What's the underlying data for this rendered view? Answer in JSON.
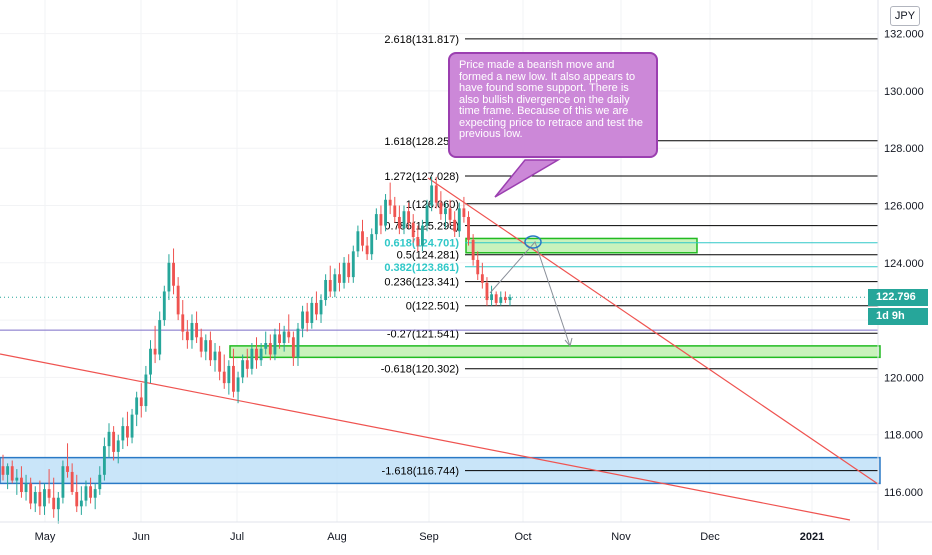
{
  "chart_data": {
    "type": "candlestick",
    "symbol_currency": "JPY",
    "x_axis_labels": [
      "May",
      "Jun",
      "Jul",
      "Aug",
      "Sep",
      "Oct",
      "Nov",
      "Dec",
      "2021"
    ],
    "y_axis_labels": [
      "116.000",
      "118.000",
      "120.000",
      "122.000",
      "124.000",
      "126.000",
      "128.000",
      "130.000",
      "132.000"
    ],
    "ylim": [
      115,
      133
    ],
    "current_price": "122.796",
    "countdown": "1d 9h",
    "candles": [
      {
        "o": 116.9,
        "h": 117.3,
        "l": 116.4,
        "c": 116.6
      },
      {
        "o": 116.6,
        "h": 117.0,
        "l": 116.1,
        "c": 116.9
      },
      {
        "o": 116.9,
        "h": 117.1,
        "l": 116.3,
        "c": 116.4
      },
      {
        "o": 116.4,
        "h": 116.8,
        "l": 115.9,
        "c": 116.5
      },
      {
        "o": 116.5,
        "h": 116.9,
        "l": 115.8,
        "c": 116.0
      },
      {
        "o": 116.0,
        "h": 116.6,
        "l": 115.7,
        "c": 116.3
      },
      {
        "o": 116.3,
        "h": 116.5,
        "l": 115.4,
        "c": 115.6
      },
      {
        "o": 115.6,
        "h": 116.2,
        "l": 115.3,
        "c": 116.0
      },
      {
        "o": 116.0,
        "h": 116.4,
        "l": 115.2,
        "c": 115.5
      },
      {
        "o": 115.5,
        "h": 116.3,
        "l": 115.2,
        "c": 116.1
      },
      {
        "o": 116.1,
        "h": 116.8,
        "l": 115.6,
        "c": 115.8
      },
      {
        "o": 115.8,
        "h": 116.5,
        "l": 115.1,
        "c": 115.4
      },
      {
        "o": 115.4,
        "h": 116.0,
        "l": 114.9,
        "c": 115.8
      },
      {
        "o": 115.8,
        "h": 117.1,
        "l": 115.6,
        "c": 116.9
      },
      {
        "o": 116.9,
        "h": 117.7,
        "l": 116.5,
        "c": 116.7
      },
      {
        "o": 116.7,
        "h": 117.0,
        "l": 115.9,
        "c": 116.0
      },
      {
        "o": 116.0,
        "h": 116.6,
        "l": 115.3,
        "c": 115.5
      },
      {
        "o": 115.5,
        "h": 116.2,
        "l": 115.2,
        "c": 115.7
      },
      {
        "o": 115.7,
        "h": 116.4,
        "l": 115.5,
        "c": 116.2
      },
      {
        "o": 116.2,
        "h": 116.5,
        "l": 115.6,
        "c": 115.8
      },
      {
        "o": 115.8,
        "h": 116.3,
        "l": 115.4,
        "c": 116.1
      },
      {
        "o": 116.1,
        "h": 116.9,
        "l": 115.9,
        "c": 116.6
      },
      {
        "o": 116.6,
        "h": 117.9,
        "l": 116.4,
        "c": 117.6
      },
      {
        "o": 117.6,
        "h": 118.4,
        "l": 117.2,
        "c": 118.1
      },
      {
        "o": 118.1,
        "h": 118.3,
        "l": 117.1,
        "c": 117.4
      },
      {
        "o": 117.4,
        "h": 118.0,
        "l": 117.0,
        "c": 117.8
      },
      {
        "o": 117.8,
        "h": 118.6,
        "l": 117.5,
        "c": 118.3
      },
      {
        "o": 118.3,
        "h": 118.8,
        "l": 117.6,
        "c": 117.9
      },
      {
        "o": 117.9,
        "h": 118.9,
        "l": 117.7,
        "c": 118.7
      },
      {
        "o": 118.7,
        "h": 119.5,
        "l": 118.3,
        "c": 119.3
      },
      {
        "o": 119.3,
        "h": 119.8,
        "l": 118.6,
        "c": 119.0
      },
      {
        "o": 119.0,
        "h": 120.4,
        "l": 118.8,
        "c": 120.1
      },
      {
        "o": 120.1,
        "h": 121.3,
        "l": 119.8,
        "c": 121.0
      },
      {
        "o": 121.0,
        "h": 121.8,
        "l": 120.5,
        "c": 120.8
      },
      {
        "o": 120.8,
        "h": 122.3,
        "l": 120.6,
        "c": 122.0
      },
      {
        "o": 122.0,
        "h": 123.2,
        "l": 121.8,
        "c": 123.0
      },
      {
        "o": 123.0,
        "h": 124.3,
        "l": 122.7,
        "c": 124.0
      },
      {
        "o": 124.0,
        "h": 124.5,
        "l": 122.9,
        "c": 123.2
      },
      {
        "o": 123.2,
        "h": 123.5,
        "l": 122.0,
        "c": 122.2
      },
      {
        "o": 122.2,
        "h": 122.7,
        "l": 121.3,
        "c": 121.6
      },
      {
        "o": 121.6,
        "h": 122.0,
        "l": 121.0,
        "c": 121.3
      },
      {
        "o": 121.3,
        "h": 122.2,
        "l": 121.0,
        "c": 121.9
      },
      {
        "o": 121.9,
        "h": 122.3,
        "l": 121.2,
        "c": 121.4
      },
      {
        "o": 121.4,
        "h": 121.7,
        "l": 120.7,
        "c": 120.9
      },
      {
        "o": 120.9,
        "h": 121.5,
        "l": 120.6,
        "c": 121.3
      },
      {
        "o": 121.3,
        "h": 121.6,
        "l": 120.4,
        "c": 120.6
      },
      {
        "o": 120.6,
        "h": 121.2,
        "l": 120.2,
        "c": 120.9
      },
      {
        "o": 120.9,
        "h": 121.1,
        "l": 119.9,
        "c": 120.2
      },
      {
        "o": 120.2,
        "h": 120.8,
        "l": 119.6,
        "c": 119.8
      },
      {
        "o": 119.8,
        "h": 120.6,
        "l": 119.4,
        "c": 120.4
      },
      {
        "o": 120.4,
        "h": 121.0,
        "l": 119.3,
        "c": 119.5
      },
      {
        "o": 119.5,
        "h": 120.2,
        "l": 119.1,
        "c": 120.0
      },
      {
        "o": 120.0,
        "h": 120.8,
        "l": 119.8,
        "c": 120.6
      },
      {
        "o": 120.6,
        "h": 121.0,
        "l": 120.0,
        "c": 120.3
      },
      {
        "o": 120.3,
        "h": 121.2,
        "l": 120.1,
        "c": 121.0
      },
      {
        "o": 121.0,
        "h": 121.4,
        "l": 120.3,
        "c": 120.6
      },
      {
        "o": 120.6,
        "h": 121.2,
        "l": 120.4,
        "c": 121.0
      },
      {
        "o": 121.0,
        "h": 121.6,
        "l": 120.8,
        "c": 121.2
      },
      {
        "o": 121.2,
        "h": 121.5,
        "l": 120.6,
        "c": 120.8
      },
      {
        "o": 120.8,
        "h": 121.7,
        "l": 120.6,
        "c": 121.5
      },
      {
        "o": 121.5,
        "h": 121.9,
        "l": 121.0,
        "c": 121.2
      },
      {
        "o": 121.2,
        "h": 121.8,
        "l": 120.9,
        "c": 121.6
      },
      {
        "o": 121.6,
        "h": 122.2,
        "l": 121.2,
        "c": 121.4
      },
      {
        "o": 121.4,
        "h": 121.6,
        "l": 120.4,
        "c": 120.7
      },
      {
        "o": 120.7,
        "h": 121.9,
        "l": 120.4,
        "c": 121.7
      },
      {
        "o": 121.7,
        "h": 122.5,
        "l": 121.4,
        "c": 122.3
      },
      {
        "o": 122.3,
        "h": 122.6,
        "l": 121.6,
        "c": 121.9
      },
      {
        "o": 121.9,
        "h": 122.8,
        "l": 121.7,
        "c": 122.6
      },
      {
        "o": 122.6,
        "h": 123.0,
        "l": 122.0,
        "c": 122.2
      },
      {
        "o": 122.2,
        "h": 122.9,
        "l": 121.9,
        "c": 122.7
      },
      {
        "o": 122.7,
        "h": 123.6,
        "l": 122.5,
        "c": 123.4
      },
      {
        "o": 123.4,
        "h": 123.9,
        "l": 122.8,
        "c": 123.0
      },
      {
        "o": 123.0,
        "h": 123.8,
        "l": 122.8,
        "c": 123.6
      },
      {
        "o": 123.6,
        "h": 124.0,
        "l": 123.0,
        "c": 123.3
      },
      {
        "o": 123.3,
        "h": 124.2,
        "l": 123.1,
        "c": 124.0
      },
      {
        "o": 124.0,
        "h": 124.3,
        "l": 123.3,
        "c": 123.5
      },
      {
        "o": 123.5,
        "h": 124.6,
        "l": 123.3,
        "c": 124.4
      },
      {
        "o": 124.4,
        "h": 125.3,
        "l": 124.2,
        "c": 125.1
      },
      {
        "o": 125.1,
        "h": 125.5,
        "l": 124.4,
        "c": 124.6
      },
      {
        "o": 124.6,
        "h": 124.9,
        "l": 124.1,
        "c": 124.3
      },
      {
        "o": 124.3,
        "h": 125.2,
        "l": 124.1,
        "c": 125.0
      },
      {
        "o": 125.0,
        "h": 125.9,
        "l": 124.8,
        "c": 125.7
      },
      {
        "o": 125.7,
        "h": 126.0,
        "l": 125.0,
        "c": 125.3
      },
      {
        "o": 125.3,
        "h": 126.4,
        "l": 125.1,
        "c": 126.2
      },
      {
        "o": 126.2,
        "h": 126.8,
        "l": 125.7,
        "c": 126.0
      },
      {
        "o": 126.0,
        "h": 126.3,
        "l": 125.4,
        "c": 125.6
      },
      {
        "o": 125.6,
        "h": 126.0,
        "l": 125.0,
        "c": 125.2
      },
      {
        "o": 125.2,
        "h": 126.0,
        "l": 125.0,
        "c": 125.8
      },
      {
        "o": 125.8,
        "h": 126.1,
        "l": 125.2,
        "c": 125.4
      },
      {
        "o": 125.4,
        "h": 125.7,
        "l": 124.7,
        "c": 124.9
      },
      {
        "o": 124.9,
        "h": 125.3,
        "l": 124.4,
        "c": 124.6
      },
      {
        "o": 124.6,
        "h": 125.5,
        "l": 124.4,
        "c": 125.3
      },
      {
        "o": 125.3,
        "h": 126.2,
        "l": 125.1,
        "c": 126.0
      },
      {
        "o": 126.0,
        "h": 127.0,
        "l": 125.8,
        "c": 126.7
      },
      {
        "o": 126.7,
        "h": 127.0,
        "l": 125.9,
        "c": 126.1
      },
      {
        "o": 126.1,
        "h": 126.5,
        "l": 125.5,
        "c": 125.7
      },
      {
        "o": 125.7,
        "h": 126.1,
        "l": 125.2,
        "c": 125.9
      },
      {
        "o": 125.9,
        "h": 126.2,
        "l": 125.3,
        "c": 125.5
      },
      {
        "o": 125.5,
        "h": 125.8,
        "l": 124.9,
        "c": 125.1
      },
      {
        "o": 125.1,
        "h": 126.1,
        "l": 124.9,
        "c": 125.9
      },
      {
        "o": 125.9,
        "h": 126.3,
        "l": 125.4,
        "c": 125.6
      },
      {
        "o": 125.6,
        "h": 125.8,
        "l": 124.6,
        "c": 124.8
      },
      {
        "o": 124.8,
        "h": 125.0,
        "l": 123.9,
        "c": 124.1
      },
      {
        "o": 124.1,
        "h": 124.4,
        "l": 123.4,
        "c": 123.6
      },
      {
        "o": 123.6,
        "h": 124.0,
        "l": 123.1,
        "c": 123.3
      },
      {
        "o": 123.3,
        "h": 123.5,
        "l": 122.5,
        "c": 122.7
      },
      {
        "o": 122.7,
        "h": 123.2,
        "l": 122.5,
        "c": 122.9
      },
      {
        "o": 122.9,
        "h": 123.0,
        "l": 122.5,
        "c": 122.6
      },
      {
        "o": 122.6,
        "h": 123.0,
        "l": 122.5,
        "c": 122.8
      },
      {
        "o": 122.8,
        "h": 123.0,
        "l": 122.6,
        "c": 122.7
      },
      {
        "o": 122.7,
        "h": 122.9,
        "l": 122.5,
        "c": 122.8
      }
    ],
    "fib_levels": [
      {
        "label": "2.618(131.817)",
        "price": 131.817,
        "color": "#000000",
        "bold": false
      },
      {
        "label": "1.618(128.259)",
        "price": 128.259,
        "color": "#000000",
        "bold": false
      },
      {
        "label": "1.272(127.028)",
        "price": 127.028,
        "color": "#000000",
        "bold": false
      },
      {
        "label": "1(126.060)",
        "price": 126.06,
        "color": "#000000",
        "bold": false
      },
      {
        "label": "0.786(125.298)",
        "price": 125.298,
        "color": "#000000",
        "bold": false
      },
      {
        "label": "0.618(124.701)",
        "price": 124.701,
        "color": "#30c8c8",
        "bold": true
      },
      {
        "label": "0.5(124.281)",
        "price": 124.281,
        "color": "#000000",
        "bold": false
      },
      {
        "label": "0.382(123.861)",
        "price": 123.861,
        "color": "#30c8c8",
        "bold": true
      },
      {
        "label": "0.236(123.341)",
        "price": 123.341,
        "color": "#000000",
        "bold": false
      },
      {
        "label": "0(122.501)",
        "price": 122.501,
        "color": "#000000",
        "bold": false
      },
      {
        "label": "-0.27(121.541)",
        "price": 121.541,
        "color": "#000000",
        "bold": false
      },
      {
        "label": "-0.618(120.302)",
        "price": 120.302,
        "color": "#000000",
        "bold": false
      },
      {
        "label": "-1.618(116.744)",
        "price": 116.744,
        "color": "#000000",
        "bold": false
      }
    ],
    "zones": [
      {
        "price_top": 124.85,
        "price_bottom": 124.35,
        "fill": "#bff0b0",
        "stroke": "#22bb22"
      },
      {
        "price_top": 121.1,
        "price_bottom": 120.7,
        "fill": "#bff0b0",
        "stroke": "#22bb22"
      },
      {
        "price_top": 117.2,
        "price_bottom": 116.3,
        "fill": "#bfe0f8",
        "stroke": "#2979c6"
      }
    ],
    "annotation": "Price made a bearish move and formed a new low.  It also appears to have found some support. There is also bullish divergence on the daily time frame. Because of this we are expecting price to retrace and test the previous low.",
    "colors": {
      "up": "#26a69a",
      "down": "#ef5350",
      "zone_green": "#22bb22",
      "zone_blue": "#2979c6",
      "price_tag": "#26a69a",
      "trendline": "#ef5350",
      "callout": "#cc88d8"
    }
  }
}
